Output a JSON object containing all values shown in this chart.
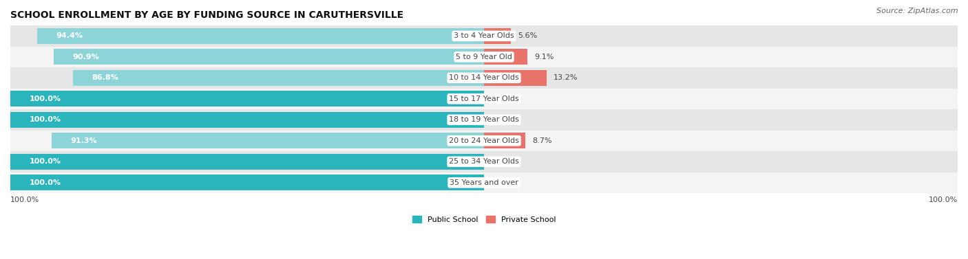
{
  "title": "SCHOOL ENROLLMENT BY AGE BY FUNDING SOURCE IN CARUTHERSVILLE",
  "source": "Source: ZipAtlas.com",
  "categories": [
    "3 to 4 Year Olds",
    "5 to 9 Year Old",
    "10 to 14 Year Olds",
    "15 to 17 Year Olds",
    "18 to 19 Year Olds",
    "20 to 24 Year Olds",
    "25 to 34 Year Olds",
    "35 Years and over"
  ],
  "public_values": [
    94.4,
    90.9,
    86.8,
    100.0,
    100.0,
    91.3,
    100.0,
    100.0
  ],
  "private_values": [
    5.6,
    9.1,
    13.2,
    0.0,
    0.0,
    8.7,
    0.0,
    0.0
  ],
  "public_color_full": "#2ab5bc",
  "public_color_light": "#8dd4d8",
  "private_color_full": "#e8736a",
  "private_color_light": "#f0b0a8",
  "row_bg_even": "#e6e6e6",
  "row_bg_odd": "#f4f4f4",
  "label_white": "#ffffff",
  "label_dark": "#444444",
  "axis_label_left": "100.0%",
  "axis_label_right": "100.0%",
  "legend_public": "Public School",
  "legend_private": "Private School",
  "title_fontsize": 10,
  "bar_label_fontsize": 8,
  "category_fontsize": 8,
  "source_fontsize": 8,
  "axis_fontsize": 8
}
